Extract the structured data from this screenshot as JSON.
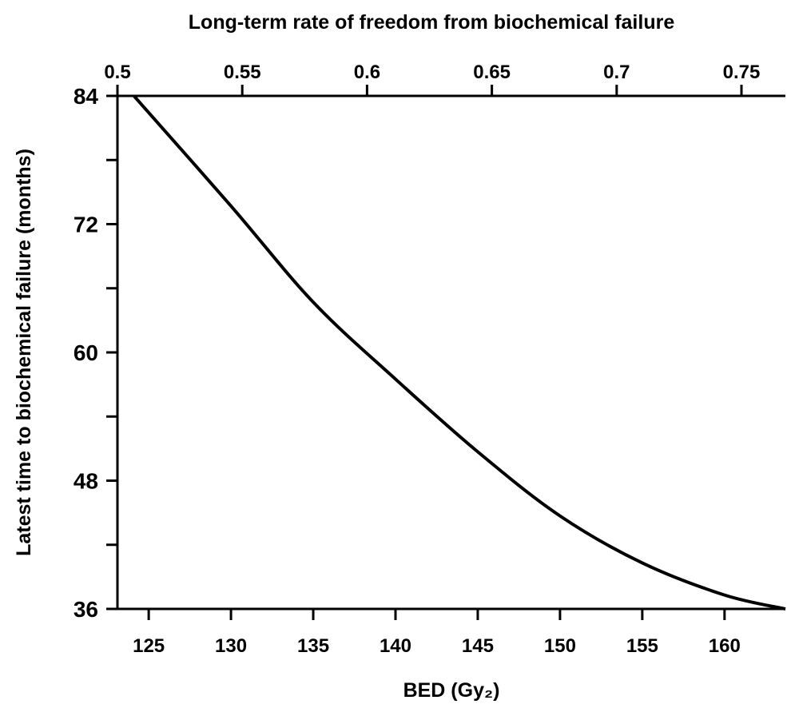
{
  "chart_data": {
    "type": "line",
    "title": "Long-term rate of freedom from biochemical failure",
    "x_label": "BED (Gy₂)",
    "y_label": "Latest time to biochemical failure (months)",
    "color": "#000000",
    "series": [
      {
        "color": "#000000",
        "x": [
          124.1,
          130,
          135,
          140,
          145,
          150,
          155,
          160,
          163.7
        ],
        "values": [
          84,
          73.7,
          64.7,
          57.5,
          50.7,
          44.7,
          40.3,
          37.3,
          36
        ]
      }
    ],
    "xlim": [
      123.1,
      163.7
    ],
    "xticks": [
      125,
      130,
      135,
      140,
      145,
      150,
      155,
      160
    ],
    "x2lim": [
      0.5,
      0.7676
    ],
    "x2ticks": [
      0.5,
      0.55,
      0.6,
      0.65,
      0.7,
      0.75
    ],
    "ylim": [
      36,
      84
    ],
    "yticks": [
      36,
      48,
      60,
      72,
      84
    ],
    "minor_yticks": [
      42,
      54,
      66,
      78
    ]
  }
}
